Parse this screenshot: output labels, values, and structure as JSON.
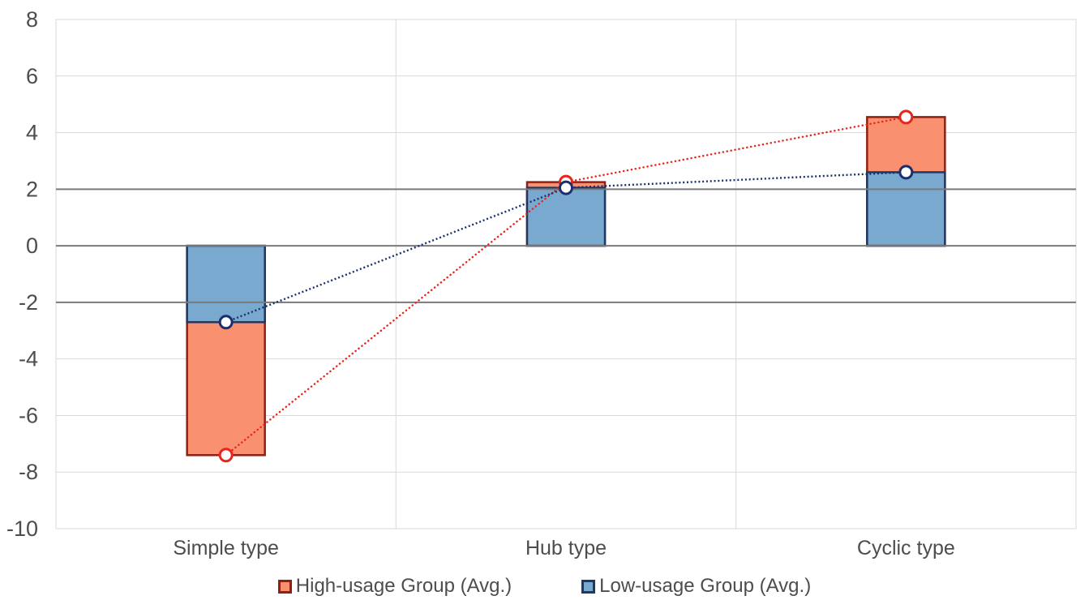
{
  "chart_data": {
    "type": "bar",
    "variant": "overlapped-bars-with-dotted-connector-lines-and-open-circle-markers",
    "title": "",
    "xlabel": "",
    "ylabel": "",
    "categories": [
      "Simple type",
      "Hub type",
      "Cyclic type"
    ],
    "series": [
      {
        "name": "High-usage Group (Avg.)",
        "values": [
          -7.4,
          2.25,
          4.55
        ],
        "fill": "#f9906f",
        "border": "#8f2012",
        "line": "#e8251d",
        "marker": "open-circle-white-fill"
      },
      {
        "name": "Low-usage Group (Avg.)",
        "values": [
          -2.7,
          2.05,
          2.6
        ],
        "fill": "#79a9ce",
        "border": "#1f3864",
        "line": "#1b2f6e",
        "marker": "open-circle-white-fill"
      }
    ],
    "ylim": [
      -10,
      8
    ],
    "yticks": [
      8,
      6,
      4,
      2,
      0,
      -2,
      -4,
      -6,
      -8,
      -10
    ],
    "emphasized_gridlines": [
      2,
      0,
      -2
    ],
    "grid": true,
    "gridline_light_color": "#d9d9d9",
    "gridline_dark_color": "#7a7a7a",
    "axis_text_color": "#4d4d4d",
    "legend_position": "bottom"
  }
}
